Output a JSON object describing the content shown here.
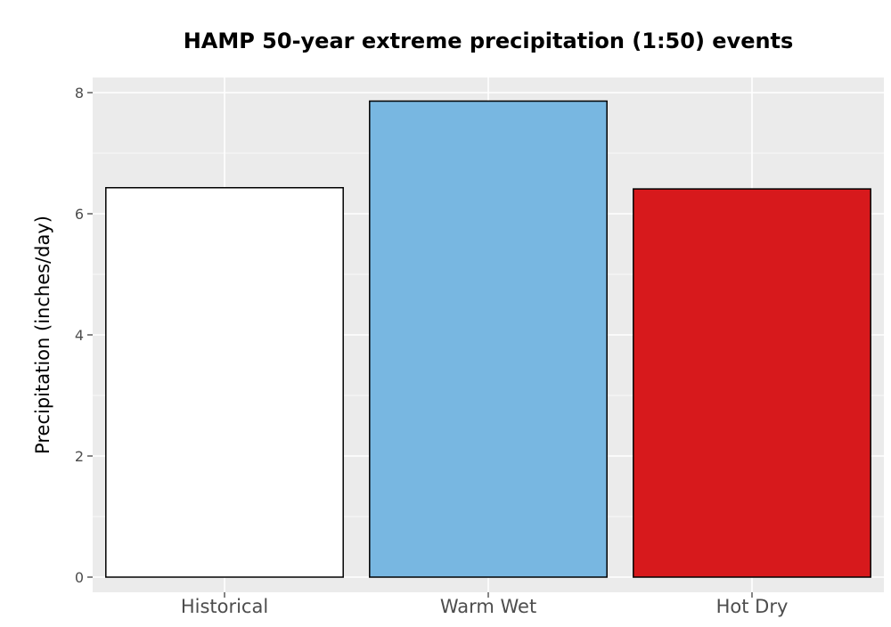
{
  "chart_data": {
    "type": "bar",
    "title": "HAMP 50-year extreme precipitation (1:50) events",
    "xlabel": "",
    "ylabel": "Precipitation (inches/day)",
    "categories": [
      "Historical",
      "Warm Wet",
      "Hot Dry"
    ],
    "values": [
      6.43,
      7.86,
      6.41
    ],
    "colors": [
      "#ffffff",
      "#78b7e1",
      "#d7191c"
    ],
    "ylim": [
      -0.25,
      8.25
    ],
    "yticks": [
      0,
      2,
      4,
      6,
      8
    ],
    "grid": true,
    "legend": "none",
    "panel_background": "#ebebeb",
    "bar_outline": "#000000"
  }
}
